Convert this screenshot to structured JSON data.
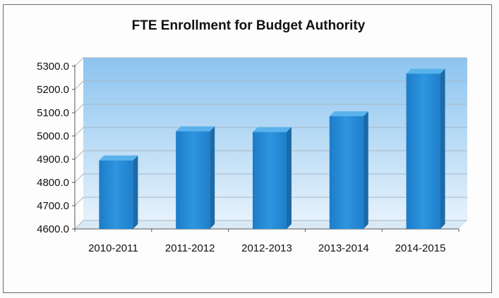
{
  "chart_data": {
    "type": "bar",
    "title": "FTE Enrollment for Budget Authority",
    "categories": [
      "2010-2011",
      "2011-2012",
      "2012-2013",
      "2013-2014",
      "2014-2015"
    ],
    "values": [
      4895,
      5020,
      5017,
      5085,
      5268
    ],
    "xlabel": "",
    "ylabel": "",
    "ylim": [
      4600,
      5300
    ],
    "yticks": [
      "4600.0",
      "4700.0",
      "4800.0",
      "4900.0",
      "5000.0",
      "5100.0",
      "5200.0",
      "5300.0"
    ],
    "grid": true,
    "legend": "none",
    "colors": {
      "bar": "#2e8fd6",
      "bar_dark": "#1c6aa8",
      "bar_top": "#5ab2ec",
      "wall_top": "#8cc4ef",
      "wall_bottom": "#e8f3fb"
    }
  }
}
